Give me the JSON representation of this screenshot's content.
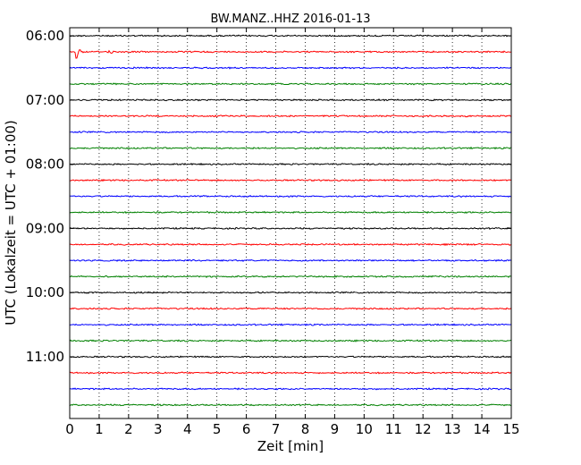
{
  "chart_data": {
    "type": "line",
    "title": "BW.MANZ..HHZ 2016-01-13",
    "xlabel": "Zeit  [min]",
    "ylabel": "UTC (Lokalzeit = UTC + 01:00)",
    "xlim": [
      0,
      15
    ],
    "x_ticks": [
      "0",
      "1",
      "2",
      "3",
      "4",
      "5",
      "6",
      "7",
      "8",
      "9",
      "10",
      "11",
      "12",
      "13",
      "14",
      "15"
    ],
    "y_ticks": [
      "06:00",
      "07:00",
      "08:00",
      "09:00",
      "10:00",
      "11:00"
    ],
    "grid": "vertical dotted",
    "trace_colors": [
      "#000000",
      "#ff0000",
      "#0000ff",
      "#008000"
    ],
    "traces": [
      {
        "start": "06:00"
      },
      {
        "start": "06:15"
      },
      {
        "start": "06:30"
      },
      {
        "start": "06:45"
      },
      {
        "start": "07:00"
      },
      {
        "start": "07:15"
      },
      {
        "start": "07:30"
      },
      {
        "start": "07:45"
      },
      {
        "start": "08:00"
      },
      {
        "start": "08:15"
      },
      {
        "start": "08:30"
      },
      {
        "start": "08:45"
      },
      {
        "start": "09:00"
      },
      {
        "start": "09:15"
      },
      {
        "start": "09:30"
      },
      {
        "start": "09:45"
      },
      {
        "start": "10:00"
      },
      {
        "start": "10:15"
      },
      {
        "start": "10:30"
      },
      {
        "start": "10:45"
      },
      {
        "start": "11:00"
      },
      {
        "start": "11:15"
      },
      {
        "start": "11:30"
      },
      {
        "start": "11:45"
      }
    ],
    "events": [
      {
        "trace": 1,
        "minute": 0.2,
        "amplitude": "large"
      },
      {
        "trace": 1,
        "minute": 1.35,
        "amplitude": "small"
      }
    ]
  }
}
